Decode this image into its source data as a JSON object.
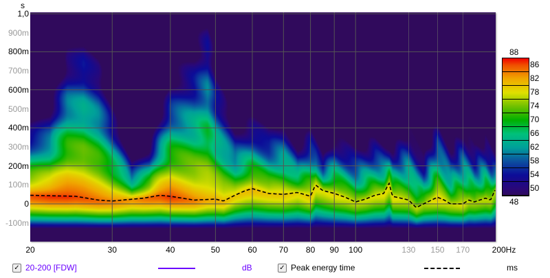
{
  "chart_data": {
    "type": "heatmap",
    "subtype": "spectrogram",
    "y_unit": "s",
    "x_unit": "Hz",
    "x_scale": "log",
    "xlim": [
      20,
      200
    ],
    "ylim": [
      -0.2,
      1.0
    ],
    "grid": true,
    "background_color": "#300a5c",
    "x_ticks": [
      {
        "value": 20,
        "label": "20",
        "major": true
      },
      {
        "value": 30,
        "label": "30",
        "major": true
      },
      {
        "value": 40,
        "label": "40",
        "major": true
      },
      {
        "value": 50,
        "label": "50",
        "major": true
      },
      {
        "value": 60,
        "label": "60",
        "major": true
      },
      {
        "value": 70,
        "label": "70",
        "major": true
      },
      {
        "value": 80,
        "label": "80",
        "major": true
      },
      {
        "value": 90,
        "label": "90",
        "major": true
      },
      {
        "value": 100,
        "label": "100",
        "major": true
      },
      {
        "value": 130,
        "label": "130",
        "major": false
      },
      {
        "value": 150,
        "label": "150",
        "major": false
      },
      {
        "value": 170,
        "label": "170",
        "major": false
      },
      {
        "value": 200,
        "label": "200Hz",
        "major": true
      }
    ],
    "y_ticks": [
      {
        "value": 1.0,
        "label": "1,0",
        "major": true
      },
      {
        "value": 0.9,
        "label": "900m",
        "major": false
      },
      {
        "value": 0.8,
        "label": "800m",
        "major": true
      },
      {
        "value": 0.7,
        "label": "700m",
        "major": false
      },
      {
        "value": 0.6,
        "label": "600m",
        "major": true
      },
      {
        "value": 0.5,
        "label": "500m",
        "major": false
      },
      {
        "value": 0.4,
        "label": "400m",
        "major": true
      },
      {
        "value": 0.3,
        "label": "300m",
        "major": false
      },
      {
        "value": 0.2,
        "label": "200m",
        "major": true
      },
      {
        "value": 0.1,
        "label": "100m",
        "major": false
      },
      {
        "value": 0.0,
        "label": "0",
        "major": true
      },
      {
        "value": -0.1,
        "label": "-100m",
        "major": false
      }
    ],
    "y_unit_label": "s",
    "colorbar": {
      "unit": "dB",
      "min": 48,
      "max": 88,
      "min_label": "48",
      "max_label": "88",
      "ticks": [
        "86",
        "82",
        "78",
        "74",
        "70",
        "66",
        "62",
        "58",
        "54",
        "50"
      ],
      "stops": [
        {
          "db": 48,
          "color": "#300a5c"
        },
        {
          "db": 50,
          "color": "#2a0878"
        },
        {
          "db": 54,
          "color": "#0c0c98"
        },
        {
          "db": 58,
          "color": "#0c50a0"
        },
        {
          "db": 62,
          "color": "#00a09a"
        },
        {
          "db": 66,
          "color": "#00c07a"
        },
        {
          "db": 70,
          "color": "#00b000"
        },
        {
          "db": 74,
          "color": "#70c000"
        },
        {
          "db": 78,
          "color": "#e0e000"
        },
        {
          "db": 82,
          "color": "#f0a800"
        },
        {
          "db": 86,
          "color": "#f05000"
        },
        {
          "db": 88,
          "color": "#f00000"
        }
      ]
    },
    "decay_envelope": {
      "freq_hz": [
        20,
        22,
        24,
        26,
        28,
        30,
        33,
        36,
        40,
        45,
        48,
        50,
        55,
        60,
        65,
        70,
        75,
        80,
        85,
        90,
        100,
        110,
        120,
        130,
        140,
        150,
        160,
        170,
        180,
        190,
        200
      ],
      "top_s": [
        0.42,
        0.5,
        0.8,
        0.88,
        0.75,
        0.5,
        0.22,
        0.3,
        0.65,
        0.8,
        1.0,
        0.7,
        0.4,
        0.45,
        0.4,
        0.45,
        0.3,
        0.4,
        0.25,
        0.35,
        0.3,
        0.35,
        0.3,
        0.4,
        0.25,
        0.45,
        0.3,
        0.4,
        0.3,
        0.35,
        0.25
      ],
      "peak_db": [
        86,
        87,
        87,
        86,
        85,
        84,
        83,
        85,
        87,
        84,
        82,
        82,
        80,
        81,
        80,
        80,
        79,
        80,
        78,
        79,
        77,
        78,
        79,
        77,
        76,
        80,
        77,
        78,
        76,
        77,
        76
      ]
    },
    "series": [
      {
        "name": "Peak energy time",
        "unit": "ms",
        "style": "dashed",
        "color": "#000000",
        "freq_hz": [
          20,
          25,
          28,
          30,
          35,
          38,
          40,
          45,
          50,
          52,
          55,
          58,
          60,
          65,
          70,
          75,
          80,
          82,
          85,
          90,
          95,
          100,
          105,
          110,
          115,
          118,
          120,
          125,
          130,
          135,
          140,
          150,
          155,
          160,
          170,
          175,
          180,
          190,
          195,
          200
        ],
        "values": [
          45,
          40,
          20,
          15,
          30,
          45,
          40,
          20,
          25,
          15,
          45,
          70,
          80,
          55,
          50,
          60,
          40,
          100,
          70,
          55,
          35,
          10,
          25,
          45,
          55,
          110,
          40,
          30,
          20,
          -20,
          0,
          35,
          20,
          0,
          0,
          20,
          10,
          30,
          20,
          80
        ]
      }
    ],
    "legend": [
      {
        "label": "20-200 [FDW]",
        "checked": true,
        "color": "#6a00ff",
        "unit": "dB"
      },
      {
        "label": "Peak energy time",
        "checked": true,
        "color": "#000000",
        "unit": "ms"
      }
    ]
  }
}
